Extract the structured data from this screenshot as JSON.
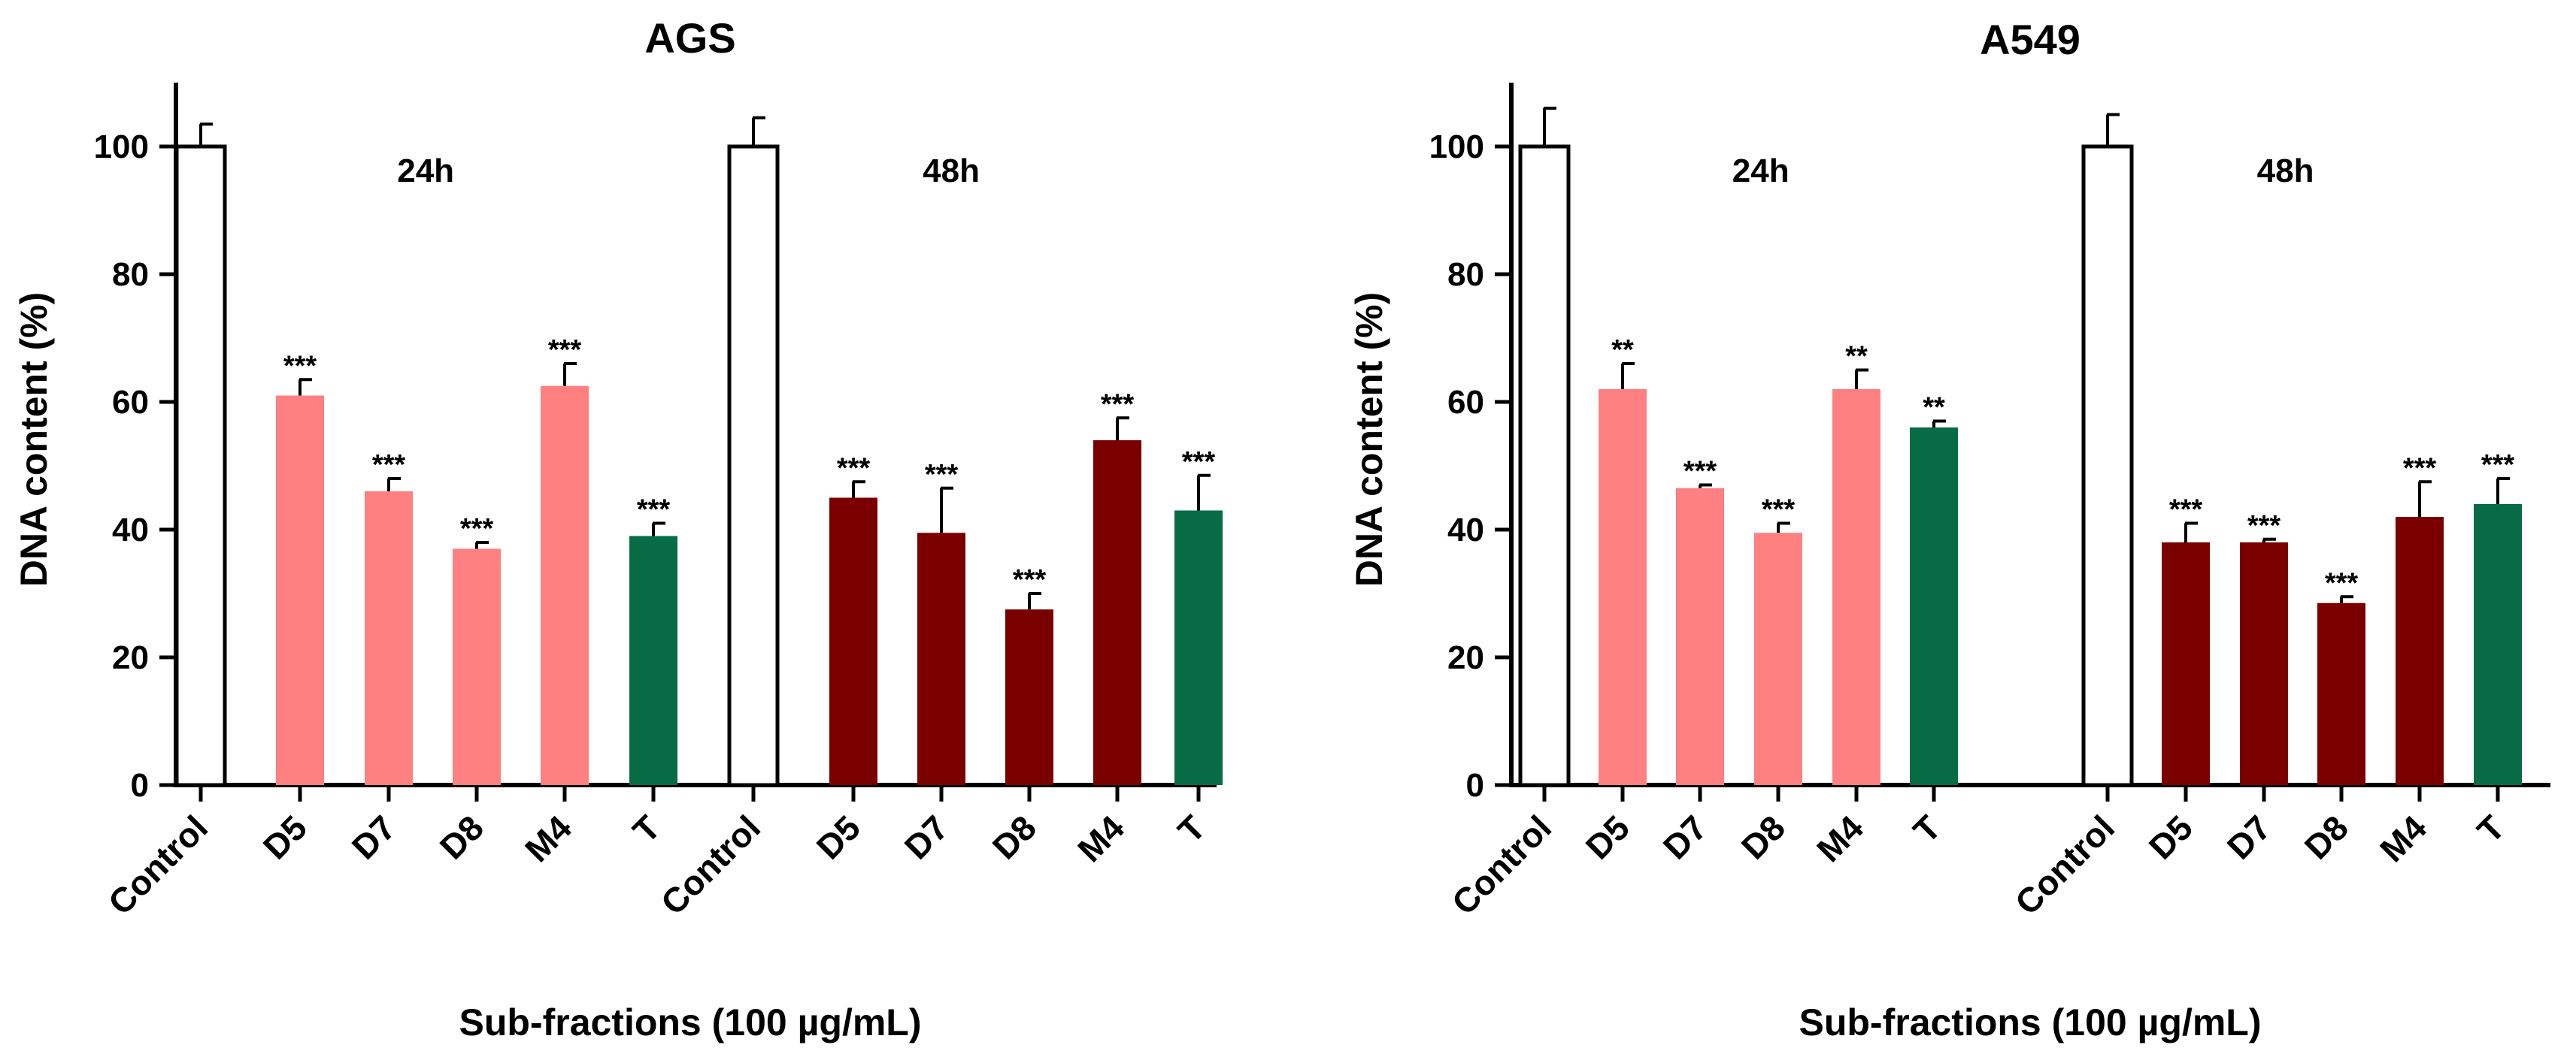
{
  "colors": {
    "Control": "#ffffff",
    "D5": "#ff8080",
    "D7": "#ff8080",
    "D8": "#ff8080",
    "M4": "#ff8080",
    "T": "#076c46",
    "D5_48h": "#7a0000",
    "D7_48h": "#7a0000",
    "D8_48h": "#7a0000",
    "M4_48h": "#7a0000"
  },
  "chart_data": [
    {
      "type": "bar",
      "title": "AGS",
      "xlabel": "Sub-fractions (100 µg/mL)",
      "ylabel": "DNA content (%)",
      "ylim": [
        0,
        110
      ],
      "yticks": [
        "0",
        "20",
        "40",
        "60",
        "80",
        "100"
      ],
      "groups": [
        {
          "label": "24h",
          "categories": [
            "Control",
            "D5",
            "D7",
            "D8",
            "M4",
            "T"
          ],
          "values": [
            100,
            61,
            46,
            37,
            62.5,
            39
          ],
          "errors": [
            3.5,
            2.5,
            2,
            1,
            3.5,
            2
          ],
          "significance": [
            "",
            "***",
            "***",
            "***",
            "***",
            "***"
          ]
        },
        {
          "label": "48h",
          "categories": [
            "Control",
            "D5",
            "D7",
            "D8",
            "M4",
            "T"
          ],
          "values": [
            100,
            45,
            39.5,
            27.5,
            54,
            43
          ],
          "errors": [
            4.5,
            2.5,
            7,
            2.5,
            3.5,
            5.5
          ],
          "significance": [
            "",
            "***",
            "***",
            "***",
            "***",
            "***"
          ]
        }
      ]
    },
    {
      "type": "bar",
      "title": "A549",
      "xlabel": "Sub-fractions (100 µg/mL)",
      "ylabel": "DNA content (%)",
      "ylim": [
        0,
        110
      ],
      "yticks": [
        "0",
        "20",
        "40",
        "60",
        "80",
        "100"
      ],
      "groups": [
        {
          "label": "24h",
          "categories": [
            "Control",
            "D5",
            "D7",
            "D8",
            "M4",
            "T"
          ],
          "values": [
            100,
            62,
            46.5,
            39.5,
            62,
            56
          ],
          "errors": [
            6,
            4,
            0.5,
            1.5,
            3,
            1
          ],
          "significance": [
            "",
            "**",
            "***",
            "***",
            "**",
            "**"
          ]
        },
        {
          "label": "48h",
          "categories": [
            "Control",
            "D5",
            "D7",
            "D8",
            "M4",
            "T"
          ],
          "values": [
            100,
            38,
            38,
            28.5,
            42,
            44
          ],
          "errors": [
            5,
            3,
            0.5,
            1,
            5.5,
            4
          ],
          "significance": [
            "",
            "***",
            "***",
            "***",
            "***",
            "***"
          ]
        }
      ]
    }
  ]
}
